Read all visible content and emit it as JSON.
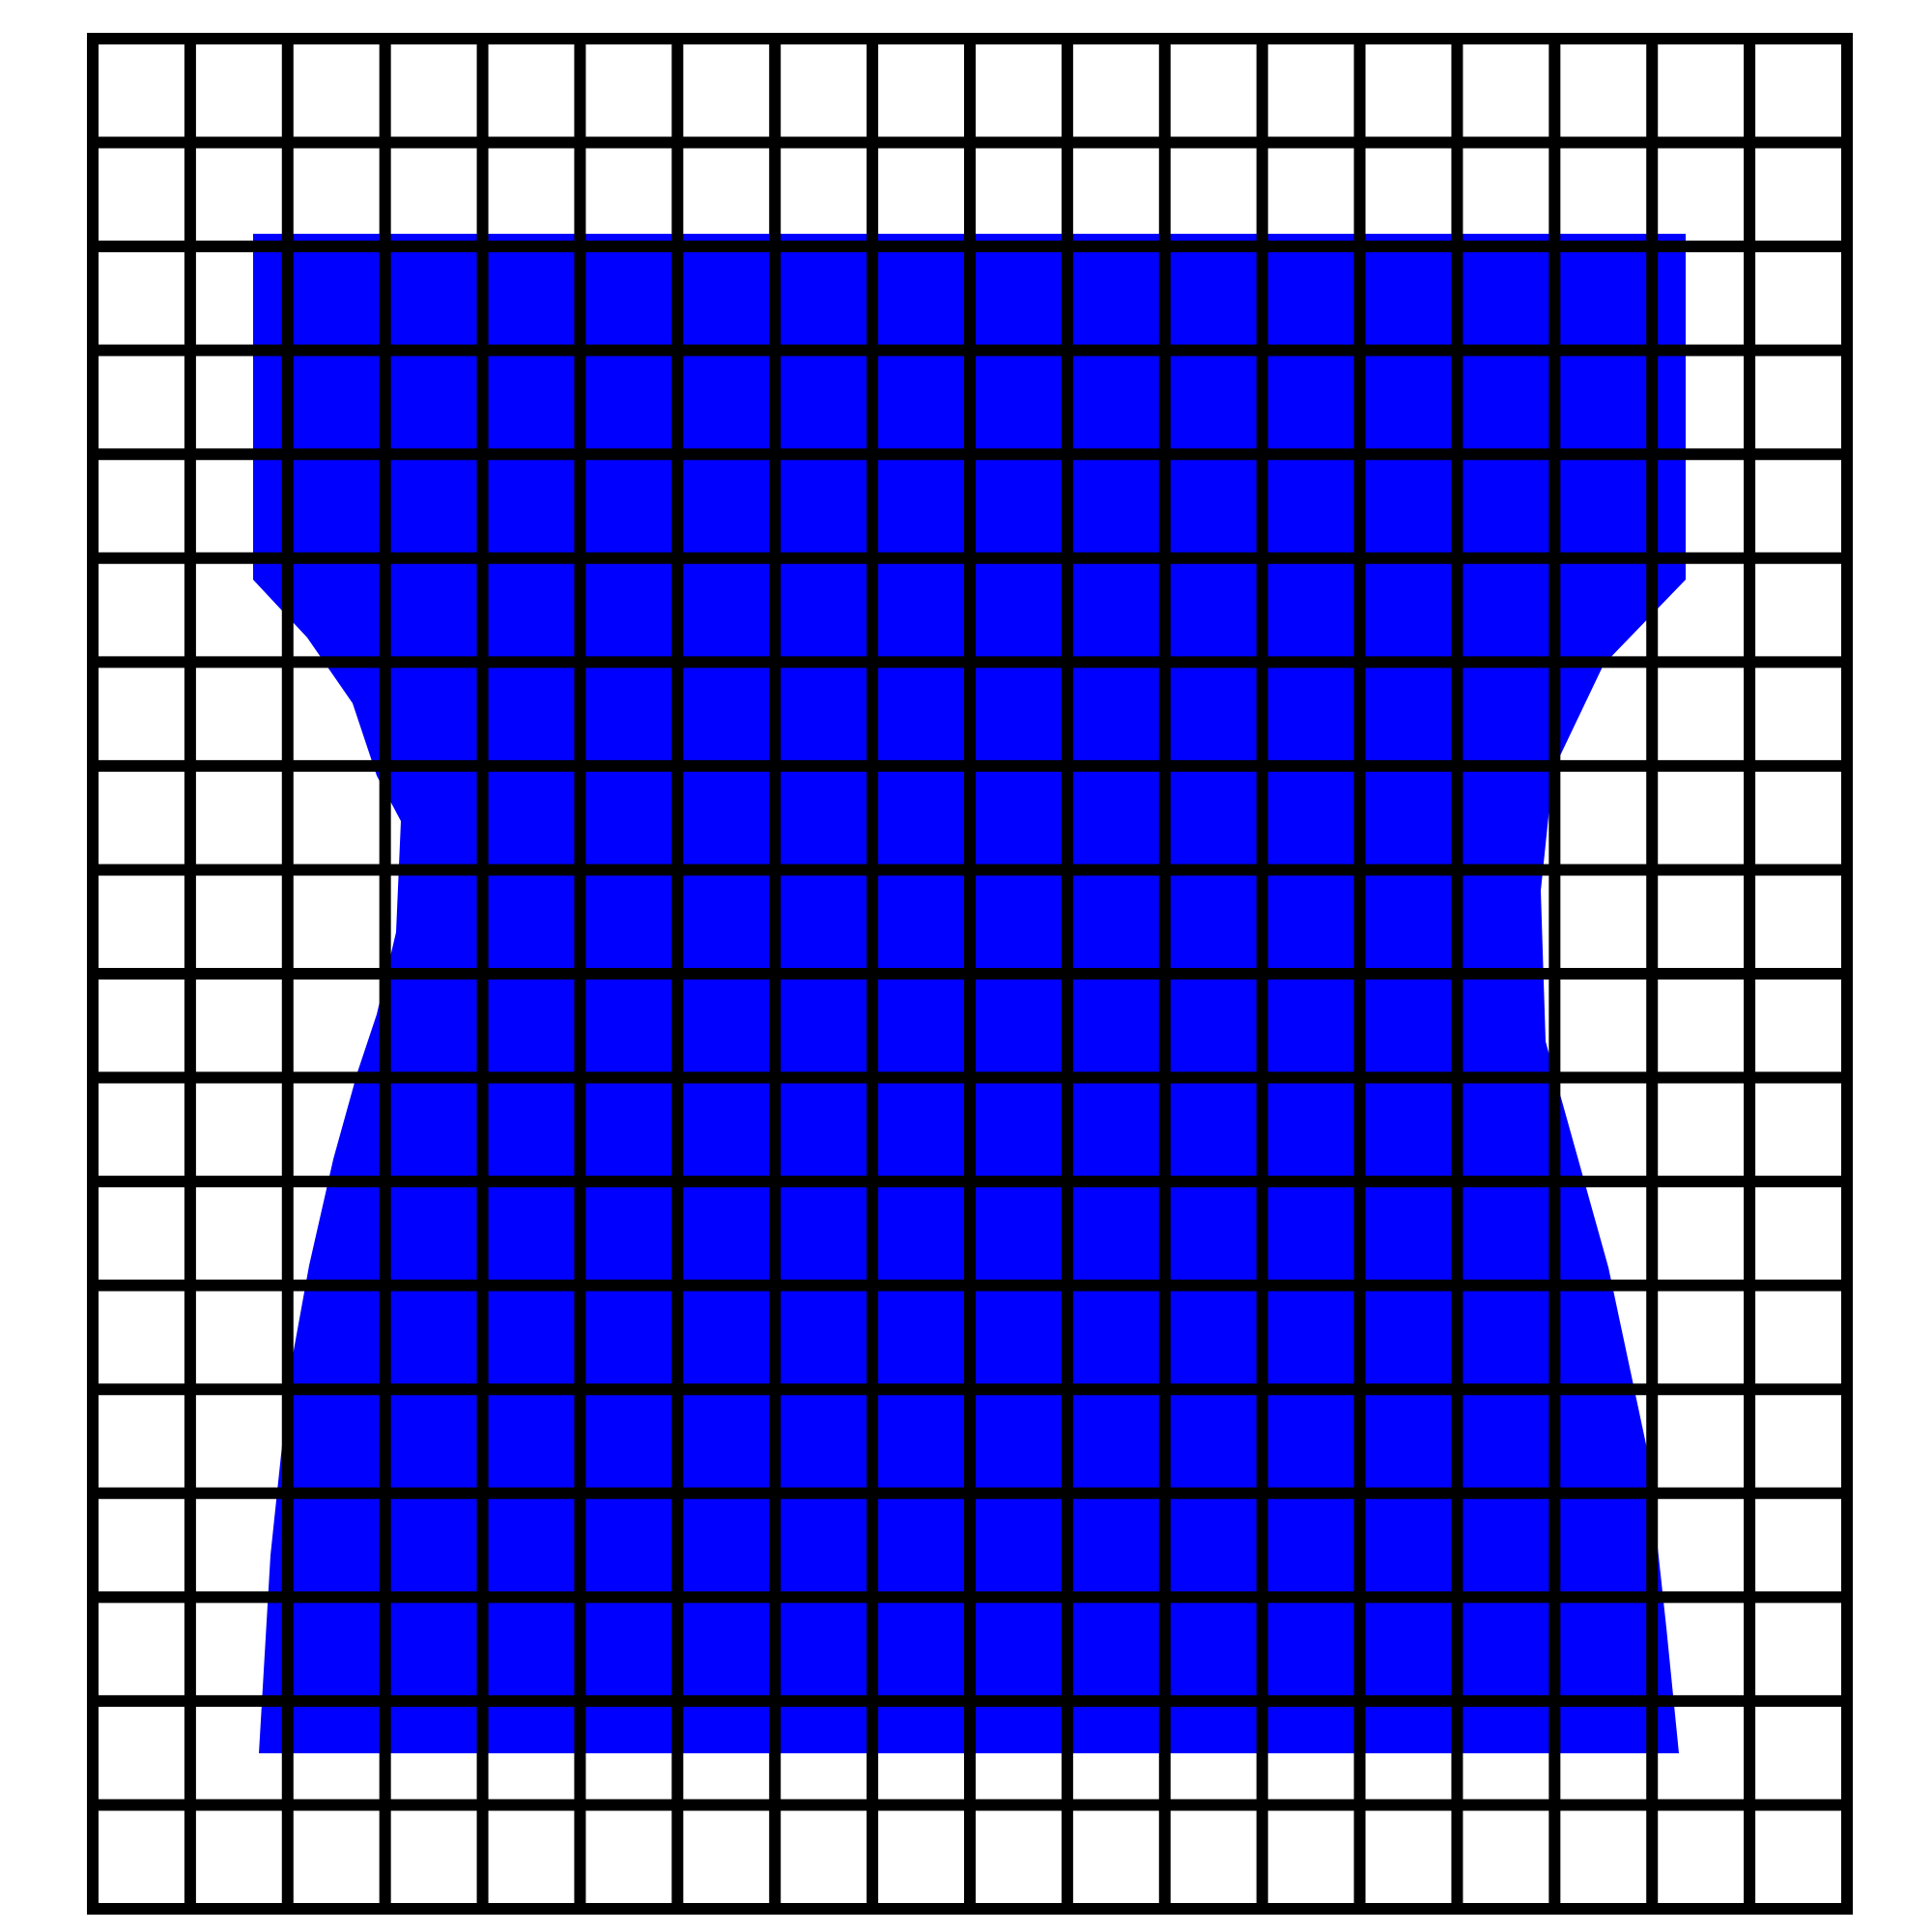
{
  "grid": {
    "columns": 18,
    "rows": 18
  },
  "colors": {
    "background": "#ffffff",
    "grid_line": "#000000",
    "shape_fill": "#0000ff"
  },
  "shape": {
    "name": "dress-silhouette"
  }
}
